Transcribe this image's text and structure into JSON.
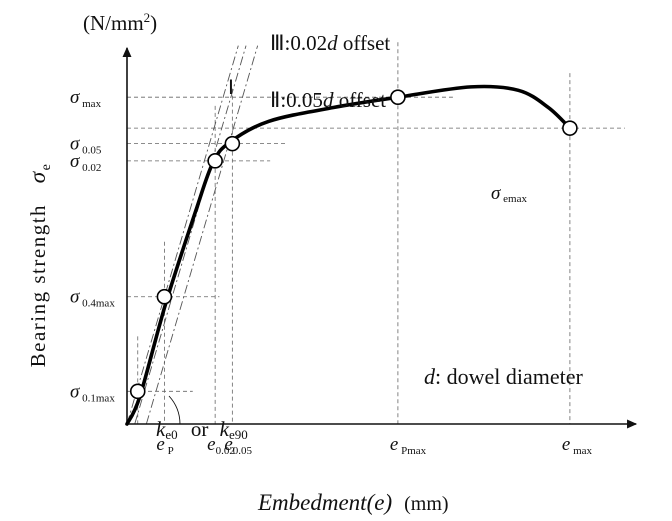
{
  "chart_data": {
    "type": "line",
    "title": "",
    "ylabel": "Bearing strength",
    "ylabel_symbol": "σ",
    "ylabel_symbol_sub": "e",
    "y_unit": "(N/mm",
    "y_unit_sup": "2",
    "y_unit_close": ")",
    "xlabel": "Embedment(e)",
    "x_unit": "(mm)",
    "xlim": [
      0,
      100
    ],
    "ylim": [
      0,
      100
    ],
    "series": [
      {
        "x": [
          0,
          3,
          9,
          16,
          20,
          24,
          33,
          48,
          63,
          80,
          91,
          98,
          103
        ],
        "y": [
          0,
          8,
          35,
          62,
          76,
          82,
          88,
          92,
          95,
          98,
          97,
          92,
          86
        ]
      }
    ],
    "marked_points": [
      {
        "name": "σ0.1max",
        "x": 2.5,
        "y": 9.5
      },
      {
        "name": "σ0.4max",
        "x": 8.7,
        "y": 37
      },
      {
        "name": "σ0.02",
        "x": 20.5,
        "y": 76.5
      },
      {
        "name": "σ0.05",
        "x": 24.5,
        "y": 81.5
      },
      {
        "name": "σmax",
        "x": 63,
        "y": 95
      },
      {
        "name": "σemax",
        "x": 103,
        "y": 86
      }
    ],
    "stiffness_lines": [
      {
        "roman": "Ⅰ",
        "x_at_0": 0,
        "slope": 4.25
      },
      {
        "roman": "Ⅲ",
        "x_at_0": 1.8,
        "slope": 4.25,
        "label": ":0.02",
        "label_d": "d",
        "label_tail": " offset"
      },
      {
        "roman": "Ⅱ",
        "x_at_0": 4.5,
        "slope": 4.25,
        "label": ":0.05",
        "label_d": "d",
        "label_tail": " offset"
      }
    ],
    "y_ticks": [
      {
        "main": "σ",
        "sub": " max",
        "y": 95
      },
      {
        "main": "σ",
        "sub": " 0.05",
        "y": 81.5
      },
      {
        "main": "σ",
        "sub": " 0.02",
        "y": 76.5
      },
      {
        "main": "σ",
        "sub": " 0.4max",
        "y": 37
      },
      {
        "main": "σ",
        "sub": " 0.1max",
        "y": 9.5
      }
    ],
    "x_ticks": [
      {
        "main": "e",
        "sub": " P",
        "x": 8.7
      },
      {
        "main": "e",
        "sub": "0.02",
        "x": 20.5
      },
      {
        "main": "e",
        "sub": "0.05",
        "x": 24.5
      },
      {
        "main": "e",
        "sub": " Pmax",
        "x": 63
      },
      {
        "main": "e",
        "sub": " max",
        "x": 103
      }
    ],
    "annotations": {
      "k_e0": {
        "main": "k",
        "sub": "e0"
      },
      "or": "or",
      "k_e90": {
        "main": "k",
        "sub": "e90"
      },
      "sigma_emax": {
        "main": "σ",
        "sub": " emax"
      },
      "dowel_d": "d",
      "dowel_text": ": dowel diameter"
    }
  }
}
